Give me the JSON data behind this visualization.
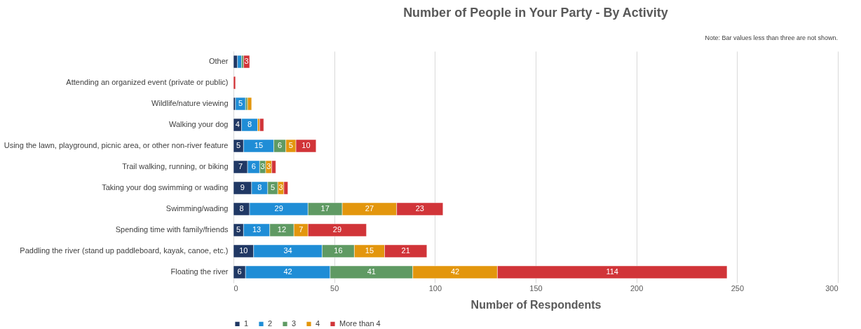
{
  "chart_data": {
    "type": "bar",
    "orientation": "horizontal",
    "stacked": true,
    "title": "Number of People in Your Party - By Activity",
    "xlabel": "Number of Respondents",
    "annotations": [
      "Note: Bar values less than three are not shown."
    ],
    "categories": [
      "Other",
      "Attending an organized event (private or public)",
      "Wildlife/nature viewing",
      "Walking your dog",
      "Using the lawn, playground, picnic area, or other non-river feature",
      "Trail walking, running, or biking",
      "Taking your dog swimming or wading",
      "Swimming/wading",
      "Spending time with family/friends",
      "Paddling the river (stand up paddleboard, kayak, canoe, etc.)",
      "Floating the river"
    ],
    "series": [
      {
        "name": "1",
        "color": "#203864",
        "values": [
          2,
          null,
          1,
          4,
          5,
          7,
          9,
          8,
          5,
          10,
          6
        ],
        "value_labels": [
          null,
          null,
          null,
          "4",
          "5",
          "7",
          "9",
          "8",
          "5",
          "10",
          "6"
        ]
      },
      {
        "name": "2",
        "color": "#1f8dd6",
        "values": [
          2,
          null,
          5,
          8,
          15,
          6,
          8,
          29,
          13,
          34,
          42
        ],
        "value_labels": [
          null,
          null,
          "5",
          "8",
          "15",
          "6",
          "8",
          "29",
          "13",
          "34",
          "42"
        ]
      },
      {
        "name": "3",
        "color": "#5f9a63",
        "values": [
          1,
          null,
          1,
          null,
          6,
          3,
          5,
          17,
          12,
          16,
          41
        ],
        "value_labels": [
          null,
          null,
          null,
          null,
          "6",
          "3",
          "5",
          "17",
          "12",
          "16",
          "41"
        ]
      },
      {
        "name": "4",
        "color": "#e3960d",
        "values": [
          null,
          null,
          2,
          1,
          5,
          3,
          3,
          27,
          7,
          15,
          42
        ],
        "value_labels": [
          null,
          null,
          null,
          null,
          "5",
          "3",
          "3",
          "27",
          "7",
          "15",
          "42"
        ]
      },
      {
        "name": "More than 4",
        "color": "#d13438",
        "values": [
          3,
          1,
          null,
          2,
          10,
          2,
          2,
          23,
          29,
          21,
          114
        ],
        "value_labels": [
          "3",
          null,
          null,
          null,
          "10",
          null,
          null,
          "23",
          "29",
          "21",
          "114"
        ]
      }
    ],
    "xlim": [
      0,
      300
    ],
    "xticks": [
      0,
      50,
      100,
      150,
      200,
      250,
      300
    ],
    "grid": "x",
    "legend": "bottom"
  }
}
